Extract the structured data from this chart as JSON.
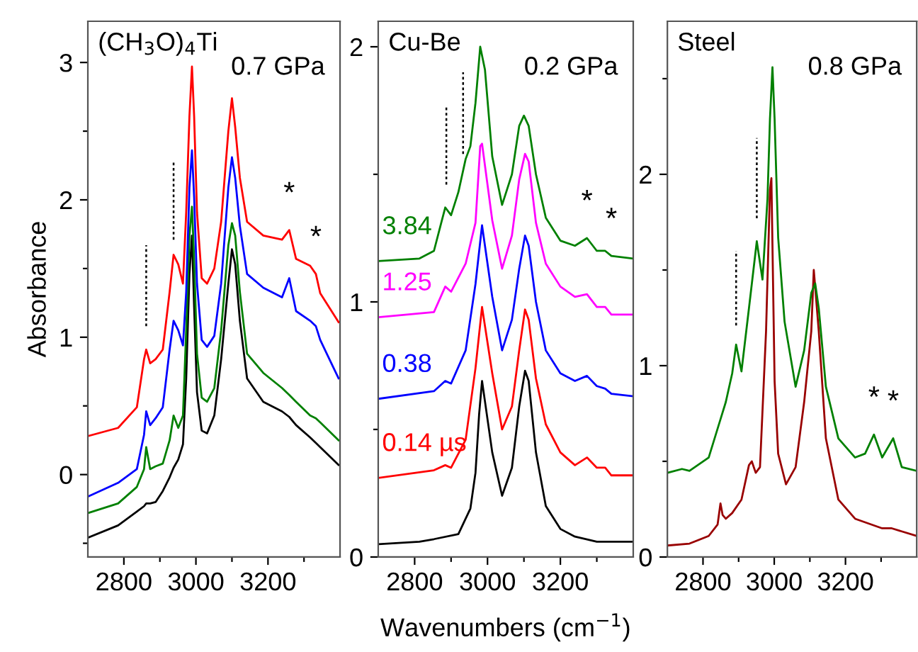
{
  "chart_data": [
    {
      "type": "line",
      "title": "(CH$_{3}$O)$_{4}$Ti",
      "subtitle": "0.7 GPa",
      "ylabel": "Absorbance",
      "xlim": [
        2700,
        3400
      ],
      "xticks": [
        2800,
        {
          "value": 2900,
          "label": null
        },
        3000,
        {
          "value": 3100,
          "label": null
        },
        3200,
        {
          "value": 3300,
          "label": null
        }
      ],
      "ylim": [
        -0.6,
        3.3
      ],
      "yticks": [
        {
          "value": -0.5,
          "label": null
        },
        0,
        {
          "value": 0.5,
          "label": null
        },
        1,
        {
          "value": 1.5,
          "label": null
        },
        2,
        {
          "value": 2.5,
          "label": null
        },
        3
      ],
      "series": [
        {
          "color": "#000000",
          "x": [
            2700,
            2784,
            2836,
            2856,
            2862,
            2873,
            2888,
            2908,
            2927,
            2938,
            2951,
            2964,
            2973,
            2982,
            2989,
            2995,
            3003,
            3016,
            3031,
            3051,
            3070,
            3090,
            3100,
            3109,
            3122,
            3142,
            3187,
            3239,
            3259,
            3278,
            3317,
            3333,
            3345,
            3396
          ],
          "values": [
            -0.46,
            -0.37,
            -0.27,
            -0.23,
            -0.21,
            -0.21,
            -0.2,
            -0.12,
            -0.02,
            0.05,
            0.11,
            0.22,
            0.7,
            1.46,
            1.74,
            1.22,
            0.6,
            0.32,
            0.3,
            0.43,
            0.84,
            1.39,
            1.64,
            1.53,
            1.12,
            0.7,
            0.53,
            0.46,
            0.42,
            0.36,
            0.27,
            0.23,
            0.2,
            0.07
          ]
        },
        {
          "color": "#008000",
          "x": [
            2700,
            2784,
            2836,
            2856,
            2862,
            2873,
            2888,
            2908,
            2927,
            2938,
            2951,
            2964,
            2973,
            2982,
            2989,
            2995,
            3003,
            3016,
            3031,
            3051,
            3070,
            3090,
            3100,
            3109,
            3122,
            3142,
            3187,
            3239,
            3259,
            3278,
            3317,
            3333,
            3345,
            3396
          ],
          "values": [
            -0.28,
            -0.21,
            -0.09,
            0.04,
            0.2,
            0.04,
            0.06,
            0.08,
            0.25,
            0.43,
            0.34,
            0.43,
            1.05,
            1.74,
            1.95,
            1.57,
            0.88,
            0.56,
            0.53,
            0.63,
            1.05,
            1.67,
            1.83,
            1.74,
            1.33,
            0.88,
            0.74,
            0.63,
            0.58,
            0.53,
            0.43,
            0.41,
            0.38,
            0.25
          ]
        },
        {
          "color": "#0000ff",
          "x": [
            2700,
            2784,
            2836,
            2856,
            2862,
            2873,
            2888,
            2908,
            2927,
            2938,
            2951,
            2964,
            2973,
            2982,
            2989,
            2995,
            3003,
            3016,
            3031,
            3051,
            3070,
            3090,
            3100,
            3109,
            3122,
            3142,
            3187,
            3239,
            3259,
            3278,
            3317,
            3333,
            3345,
            3396
          ],
          "values": [
            -0.16,
            -0.06,
            0.04,
            0.29,
            0.46,
            0.36,
            0.41,
            0.49,
            0.91,
            1.12,
            1.05,
            0.94,
            1.33,
            2.09,
            2.36,
            2.02,
            1.39,
            0.98,
            0.93,
            1.01,
            1.39,
            2.09,
            2.31,
            2.16,
            1.81,
            1.46,
            1.36,
            1.29,
            1.43,
            1.19,
            1.12,
            1.08,
            0.98,
            0.7
          ]
        },
        {
          "color": "#ff0000",
          "x": [
            2700,
            2784,
            2836,
            2856,
            2862,
            2873,
            2888,
            2908,
            2927,
            2938,
            2951,
            2964,
            2973,
            2982,
            2989,
            2995,
            3003,
            3016,
            3031,
            3051,
            3070,
            3090,
            3100,
            3109,
            3122,
            3142,
            3187,
            3239,
            3259,
            3278,
            3317,
            3333,
            3345,
            3396
          ],
          "values": [
            0.28,
            0.34,
            0.49,
            0.84,
            0.91,
            0.81,
            0.84,
            0.91,
            1.33,
            1.6,
            1.53,
            1.39,
            1.91,
            2.61,
            2.97,
            2.61,
            1.91,
            1.43,
            1.39,
            1.5,
            1.84,
            2.5,
            2.74,
            2.53,
            2.16,
            1.84,
            1.74,
            1.71,
            1.78,
            1.57,
            1.52,
            1.46,
            1.32,
            1.11
          ]
        },
        {
          "color": "#000000",
          "line_style": "dashed",
          "x": [
            2862,
            2862
          ],
          "values": [
            1.08,
            1.67
          ]
        },
        {
          "color": "#000000",
          "line_style": "dashed",
          "x": [
            2938,
            2938
          ],
          "values": [
            1.71,
            2.29
          ]
        }
      ],
      "annotations": [
        {
          "text": "*",
          "x": 3259,
          "y": 1.78
        },
        {
          "text": "*",
          "x": 3333,
          "y": 1.46
        }
      ]
    },
    {
      "type": "line",
      "title": "Cu-Be",
      "subtitle": "0.2 GPa",
      "xlabel": "Wavenumbers (cm$^{−1}$)",
      "xlim": [
        2700,
        3400
      ],
      "xticks": [
        2800,
        {
          "value": 2900,
          "label": null
        },
        3000,
        {
          "value": 3100,
          "label": null
        },
        3200,
        {
          "value": 3300,
          "label": null
        }
      ],
      "ylim": [
        0,
        2.1
      ],
      "yticks": [
        0,
        {
          "value": 0.5,
          "label": null
        },
        1,
        {
          "value": 1.5,
          "label": null
        },
        2
      ],
      "series": [
        {
          "color": "#000000",
          "x": [
            2700,
            2813,
            2853,
            2920,
            2953,
            2967,
            2977,
            2985,
            2993,
            3013,
            3040,
            3067,
            3087,
            3103,
            3113,
            3133,
            3160,
            3200,
            3240,
            3300,
            3340,
            3400
          ],
          "values": [
            0.05,
            0.06,
            0.07,
            0.09,
            0.19,
            0.33,
            0.56,
            0.69,
            0.61,
            0.41,
            0.24,
            0.35,
            0.59,
            0.73,
            0.69,
            0.41,
            0.2,
            0.11,
            0.08,
            0.06,
            0.06,
            0.06
          ]
        },
        {
          "name": "0.14 µs",
          "color": "#ff0000",
          "x": [
            2700,
            2853,
            2884,
            2900,
            2940,
            2967,
            2985,
            3013,
            3040,
            3067,
            3087,
            3103,
            3113,
            3133,
            3160,
            3200,
            3240,
            3273,
            3300,
            3323,
            3340,
            3400
          ],
          "values": [
            0.31,
            0.34,
            0.36,
            0.35,
            0.46,
            0.74,
            0.98,
            0.72,
            0.5,
            0.59,
            0.81,
            0.97,
            0.93,
            0.7,
            0.52,
            0.41,
            0.36,
            0.39,
            0.35,
            0.35,
            0.32,
            0.32
          ]
        },
        {
          "name": "0.38",
          "color": "#0000ff",
          "x": [
            2700,
            2853,
            2884,
            2900,
            2940,
            2967,
            2985,
            3013,
            3040,
            3067,
            3087,
            3103,
            3113,
            3133,
            3160,
            3200,
            3240,
            3273,
            3300,
            3323,
            3340,
            3400
          ],
          "values": [
            0.62,
            0.65,
            0.69,
            0.68,
            0.81,
            1.07,
            1.3,
            1.02,
            0.81,
            0.93,
            1.13,
            1.26,
            1.22,
            1.0,
            0.81,
            0.72,
            0.69,
            0.71,
            0.67,
            0.66,
            0.64,
            0.63
          ]
        },
        {
          "name": "1.25",
          "color": "#ff00ff",
          "x": [
            2700,
            2853,
            2884,
            2900,
            2940,
            2967,
            2980,
            2985,
            3013,
            3040,
            3067,
            3087,
            3103,
            3113,
            3133,
            3160,
            3200,
            3240,
            3273,
            3300,
            3323,
            3340,
            3400
          ],
          "values": [
            0.94,
            0.96,
            1.06,
            1.04,
            1.15,
            1.31,
            1.61,
            1.62,
            1.32,
            1.13,
            1.26,
            1.48,
            1.58,
            1.55,
            1.31,
            1.15,
            1.06,
            1.02,
            1.03,
            0.98,
            0.98,
            0.95,
            0.95
          ]
        },
        {
          "name": "3.84",
          "color": "#008000",
          "x": [
            2700,
            2813,
            2853,
            2873,
            2884,
            2900,
            2920,
            2940,
            2953,
            2967,
            2980,
            2993,
            3013,
            3040,
            3067,
            3087,
            3100,
            3113,
            3133,
            3160,
            3200,
            3240,
            3273,
            3300,
            3323,
            3340,
            3400
          ],
          "values": [
            1.16,
            1.17,
            1.2,
            1.31,
            1.37,
            1.34,
            1.43,
            1.56,
            1.61,
            1.78,
            2.0,
            1.91,
            1.57,
            1.38,
            1.5,
            1.69,
            1.73,
            1.69,
            1.5,
            1.33,
            1.24,
            1.22,
            1.25,
            1.2,
            1.2,
            1.18,
            1.17
          ]
        },
        {
          "color": "#000000",
          "line_style": "dashed",
          "x": [
            2887,
            2887
          ],
          "values": [
            1.46,
            1.77
          ]
        },
        {
          "color": "#000000",
          "line_style": "dashed",
          "x": [
            2933,
            2933
          ],
          "values": [
            1.58,
            1.9
          ]
        }
      ],
      "annotations": [
        {
          "text": "*",
          "x": 3273,
          "y": 1.25
        },
        {
          "text": "*",
          "x": 3340,
          "y": 1.18
        }
      ]
    },
    {
      "type": "line",
      "title": "Steel",
      "subtitle": "0.8 GPa",
      "xlim": [
        2700,
        3400
      ],
      "xticks": [
        2800,
        {
          "value": 2900,
          "label": null
        },
        3000,
        {
          "value": 3100,
          "label": null
        },
        3200,
        {
          "value": 3300,
          "label": null
        }
      ],
      "ylim": [
        0,
        2.8
      ],
      "yticks": [
        0,
        {
          "value": 0.5,
          "label": null
        },
        1,
        {
          "value": 1.5,
          "label": null
        },
        2,
        {
          "value": 2.5,
          "label": null
        }
      ],
      "series": [
        {
          "color": "#990000",
          "x": [
            2700,
            2762,
            2816,
            2841,
            2849,
            2855,
            2864,
            2882,
            2908,
            2929,
            2937,
            2948,
            2960,
            2977,
            2988,
            2992,
            3001,
            3011,
            3033,
            3060,
            3084,
            3104,
            3111,
            3125,
            3145,
            3180,
            3227,
            3303,
            3330,
            3400
          ],
          "values": [
            0.06,
            0.07,
            0.11,
            0.17,
            0.28,
            0.22,
            0.2,
            0.23,
            0.3,
            0.48,
            0.5,
            0.44,
            0.47,
            1.18,
            1.92,
            1.98,
            0.92,
            0.54,
            0.38,
            0.47,
            0.81,
            1.18,
            1.5,
            1.18,
            0.62,
            0.3,
            0.2,
            0.15,
            0.15,
            0.11
          ]
        },
        {
          "color": "#008000",
          "x": [
            2700,
            2741,
            2762,
            2816,
            2864,
            2882,
            2893,
            2908,
            2929,
            2951,
            2967,
            2981,
            2988,
            2995,
            3001,
            3011,
            3029,
            3060,
            3084,
            3104,
            3115,
            3125,
            3145,
            3180,
            3227,
            3255,
            3280,
            3303,
            3334,
            3358,
            3400
          ],
          "values": [
            0.44,
            0.46,
            0.45,
            0.52,
            0.81,
            0.96,
            1.11,
            0.97,
            1.3,
            1.65,
            1.45,
            1.87,
            2.29,
            2.56,
            2.29,
            1.67,
            1.23,
            0.89,
            1.08,
            1.38,
            1.43,
            1.3,
            0.89,
            0.62,
            0.52,
            0.54,
            0.64,
            0.52,
            0.62,
            0.47,
            0.45
          ]
        },
        {
          "color": "#000000",
          "line_style": "dashed",
          "x": [
            2893,
            2893
          ],
          "values": [
            1.21,
            1.6
          ]
        },
        {
          "color": "#000000",
          "line_style": "dashed",
          "x": [
            2951,
            2951
          ],
          "values": [
            1.77,
            2.19
          ]
        }
      ],
      "annotations": [
        {
          "text": "*",
          "x": 3280,
          "y": 0.64
        },
        {
          "text": "*",
          "x": 3334,
          "y": 0.62
        }
      ]
    }
  ]
}
